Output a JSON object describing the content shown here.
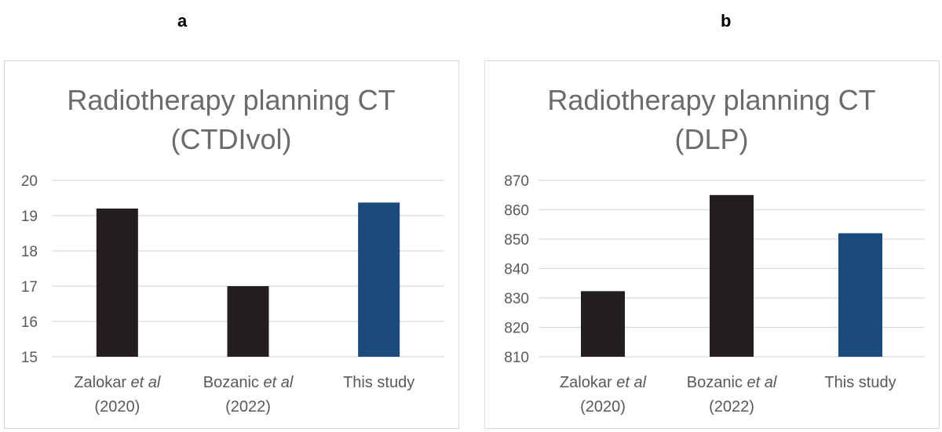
{
  "panel_labels": [
    "a",
    "b"
  ],
  "chart_data": [
    {
      "type": "bar",
      "title_lines": [
        "Radiotherapy planning CT",
        "(CTDIvol)"
      ],
      "categories": [
        {
          "name_parts": [
            "Zalokar ",
            "et al"
          ],
          "year": "(2020)"
        },
        {
          "name_parts": [
            "Bozanic ",
            "et al"
          ],
          "year": "(2022)"
        },
        {
          "name_parts": [
            "This study",
            ""
          ],
          "year": ""
        }
      ],
      "values": [
        19.2,
        17.0,
        19.37
      ],
      "bar_colors": [
        "#231f20",
        "#231f20",
        "#1b4a7c"
      ],
      "ylim": [
        15,
        20
      ],
      "yticks": [
        "15",
        "16",
        "17",
        "18",
        "19",
        "20"
      ],
      "grid": true,
      "xlabel": "",
      "ylabel": ""
    },
    {
      "type": "bar",
      "title_lines": [
        "Radiotherapy planning CT",
        "(DLP)"
      ],
      "categories": [
        {
          "name_parts": [
            "Zalokar ",
            "et al"
          ],
          "year": "(2020)"
        },
        {
          "name_parts": [
            "Bozanic ",
            "et al"
          ],
          "year": "(2022)"
        },
        {
          "name_parts": [
            "This study",
            ""
          ],
          "year": ""
        }
      ],
      "values": [
        832.3,
        865.0,
        852.0
      ],
      "bar_colors": [
        "#231f20",
        "#231f20",
        "#1b4a7c"
      ],
      "ylim": [
        810,
        870
      ],
      "yticks": [
        "810",
        "820",
        "830",
        "840",
        "850",
        "860",
        "870"
      ],
      "grid": true,
      "xlabel": "",
      "ylabel": ""
    }
  ]
}
